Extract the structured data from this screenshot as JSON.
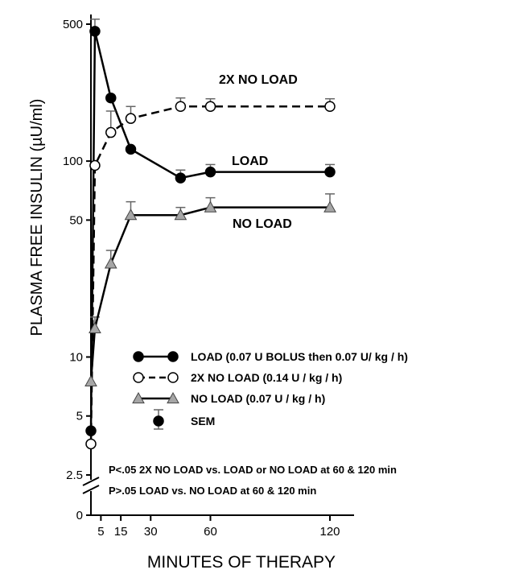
{
  "chart_data": {
    "type": "line",
    "xlabel": "MINUTES OF THERAPY",
    "ylabel": "PLASMA FREE INSULIN (µU/ml)",
    "x_ticks": [
      5,
      15,
      30,
      60,
      120
    ],
    "y_ticks": [
      {
        "value": 2.5,
        "label": "2.5"
      },
      {
        "value": 5,
        "label": "5"
      },
      {
        "value": 10,
        "label": "10"
      },
      {
        "value": 50,
        "label": "50"
      },
      {
        "value": 100,
        "label": "100"
      },
      {
        "value": 500,
        "label": "500"
      }
    ],
    "y_zero_label": "0",
    "y_scale": "log",
    "xlim": [
      0,
      135
    ],
    "ylim": [
      2.5,
      500
    ],
    "series": [
      {
        "name": "LOAD",
        "marker": "filled-circle",
        "line": "solid",
        "x": [
          0,
          2,
          10,
          20,
          45,
          60,
          120
        ],
        "y": [
          4.2,
          460,
          210,
          115,
          82,
          88,
          88
        ],
        "err": [
          0,
          70,
          0,
          0,
          8,
          8,
          8
        ]
      },
      {
        "name": "2X NO LOAD",
        "marker": "open-circle",
        "line": "dashed",
        "x": [
          0,
          2,
          10,
          20,
          45,
          60,
          120
        ],
        "y": [
          3.6,
          95,
          140,
          165,
          190,
          190,
          190
        ],
        "err": [
          0,
          0,
          40,
          25,
          20,
          18,
          18
        ]
      },
      {
        "name": "NO LOAD",
        "marker": "triangle",
        "line": "solid",
        "x": [
          0,
          2,
          10,
          20,
          45,
          60,
          120
        ],
        "y": [
          7.5,
          14,
          30,
          53,
          53,
          58,
          58
        ],
        "err": [
          0,
          2,
          5,
          9,
          5,
          7,
          10
        ]
      }
    ],
    "series_labels": [
      {
        "text": "2X NO LOAD",
        "x": 120,
        "y": 190
      },
      {
        "text": "LOAD",
        "x": 120,
        "y": 88
      },
      {
        "text": "NO LOAD",
        "x": 120,
        "y": 58
      }
    ],
    "legend": {
      "placement": "lower-right",
      "items": [
        {
          "marker": "filled-circle",
          "line": "solid",
          "label": "LOAD (0.07 U BOLUS then 0.07 U/ kg / h)"
        },
        {
          "marker": "open-circle",
          "line": "dashed",
          "label": "2X NO LOAD (0.14 U / kg / h)"
        },
        {
          "marker": "triangle",
          "line": "solid",
          "label": "NO LOAD (0.07 U / kg / h)"
        },
        {
          "marker": "filled-circle-errorbar",
          "line": "none",
          "label": "SEM"
        }
      ]
    },
    "notes": [
      "P<.05 2X NO LOAD vs. LOAD or NO LOAD at 60 & 120 min",
      "P>.05 LOAD vs. NO LOAD at 60 & 120 min"
    ],
    "axis_break": true,
    "grid": false,
    "colors": {
      "marker_fill_triangle": "#a6a6a6",
      "line": "#000000",
      "background": "#ffffff"
    }
  }
}
